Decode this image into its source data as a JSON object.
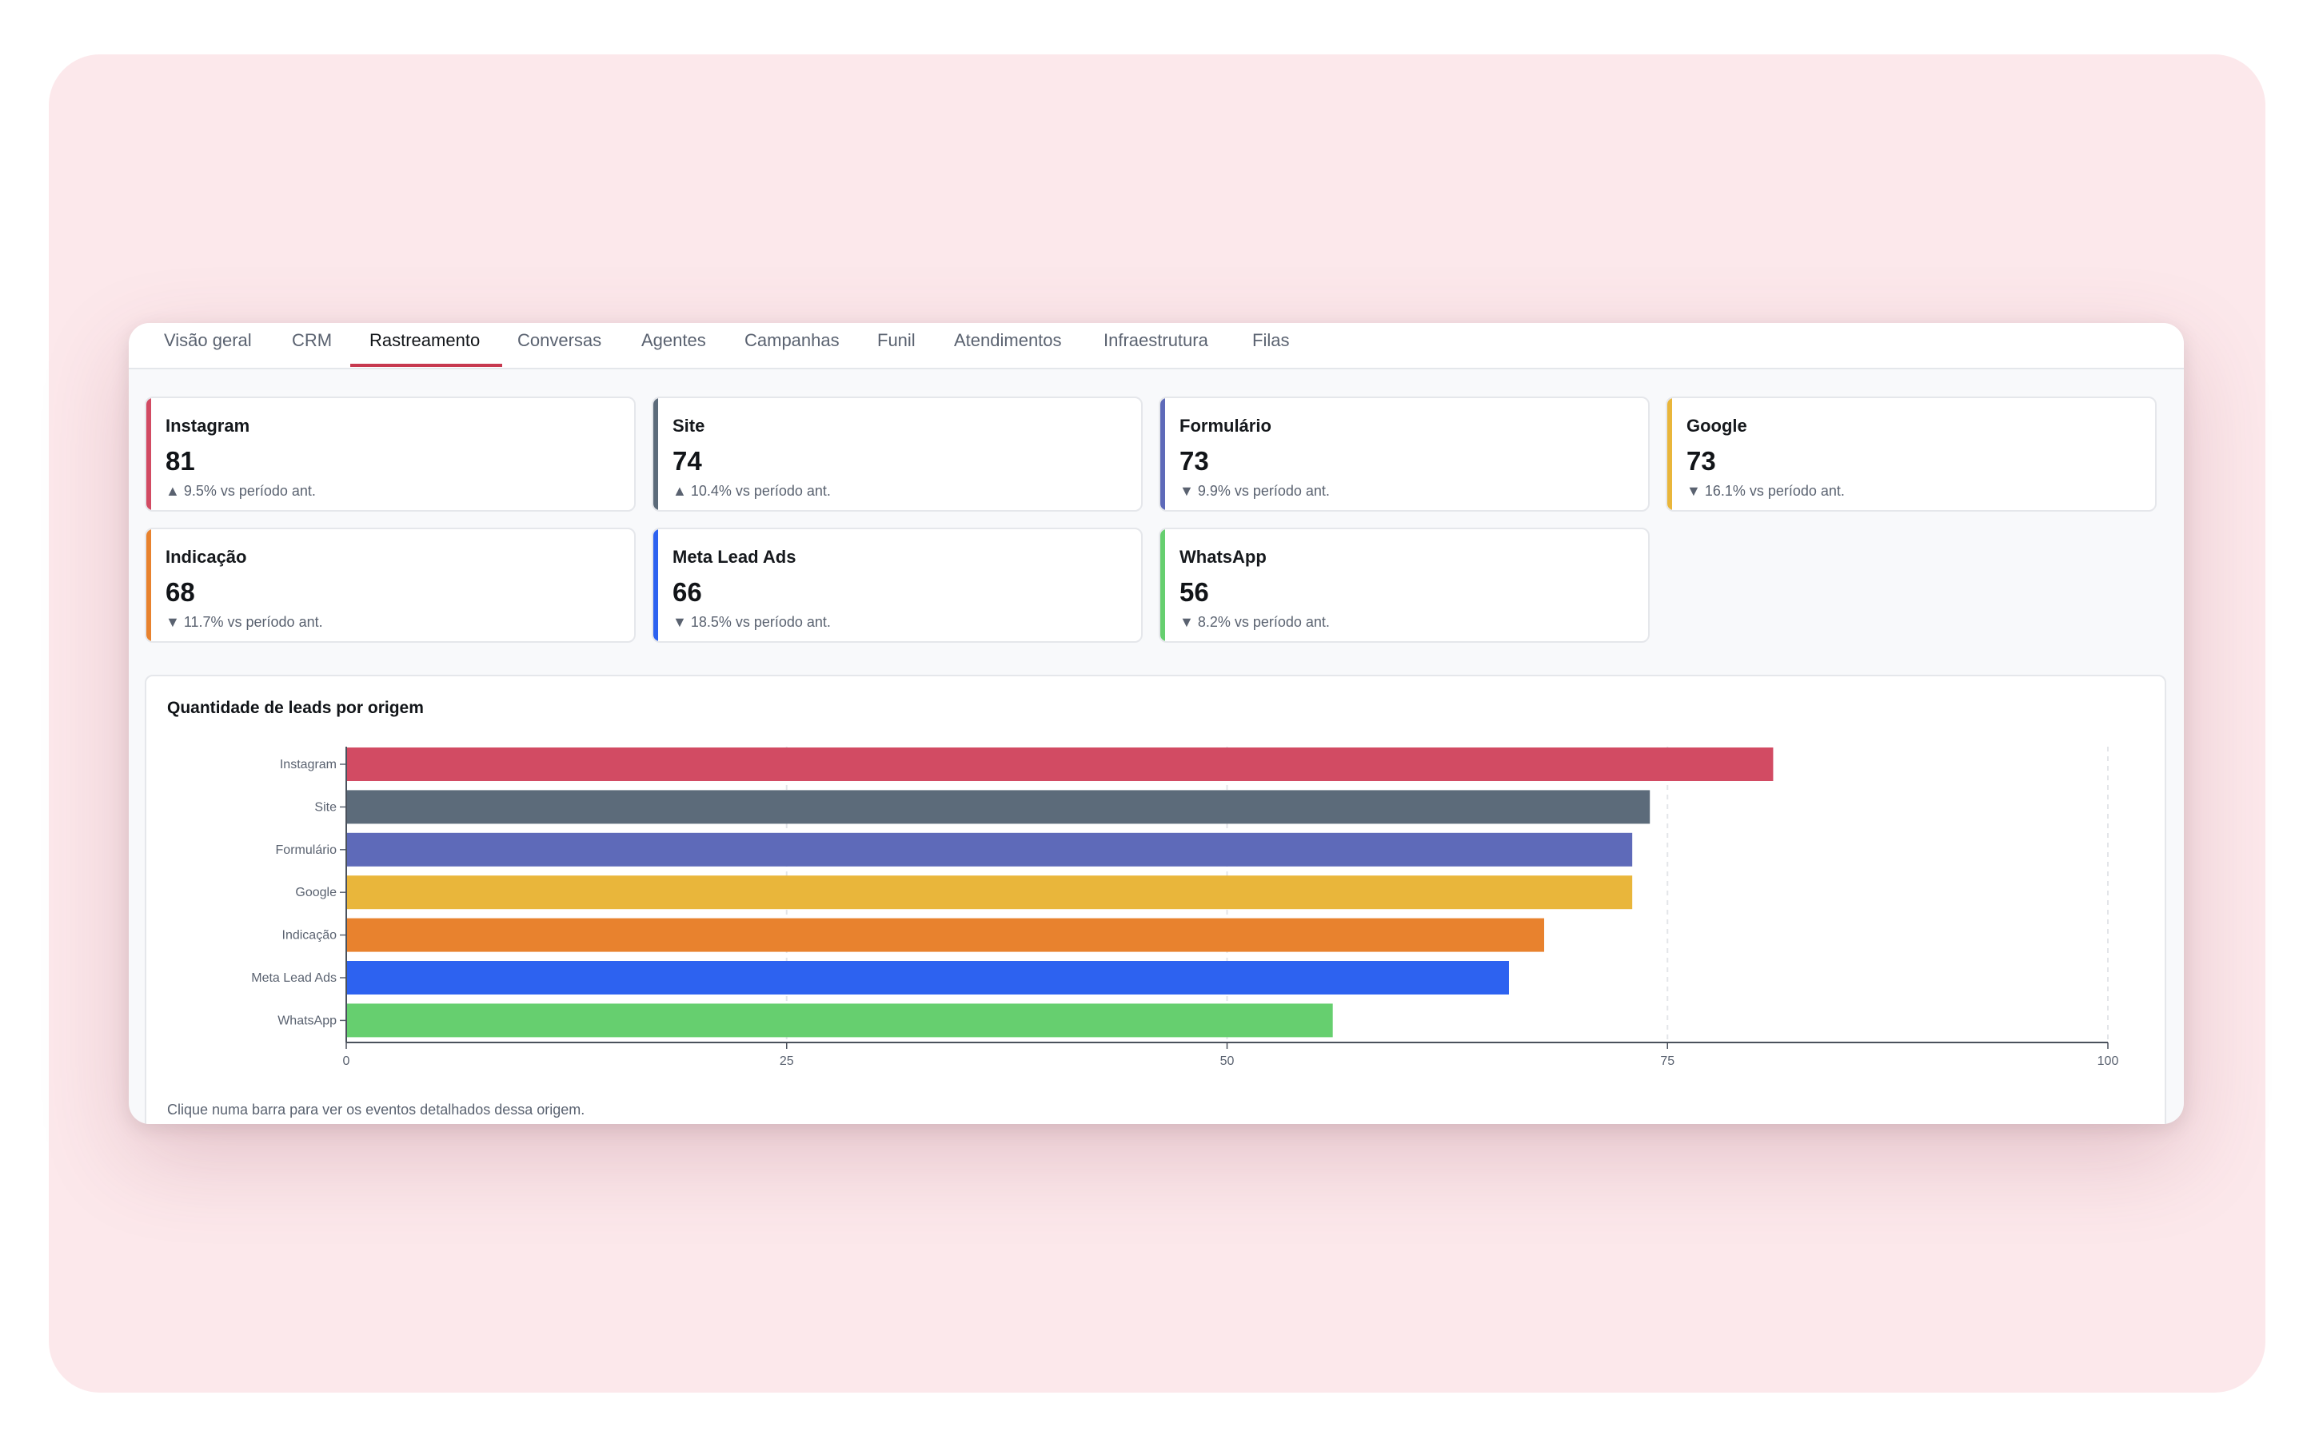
{
  "tabs": [
    {
      "label": "Visão geral",
      "active": false
    },
    {
      "label": "CRM",
      "active": false
    },
    {
      "label": "Rastreamento",
      "active": true
    },
    {
      "label": "Conversas",
      "active": false
    },
    {
      "label": "Agentes",
      "active": false
    },
    {
      "label": "Campanhas",
      "active": false
    },
    {
      "label": "Funil",
      "active": false
    },
    {
      "label": "Atendimentos",
      "active": false
    },
    {
      "label": "Infraestrutura",
      "active": false
    },
    {
      "label": "Filas",
      "active": false
    }
  ],
  "cards": [
    {
      "name": "Instagram",
      "value": "81",
      "delta": "▲ 9.5% vs período ant.",
      "color": "#d24b63"
    },
    {
      "name": "Site",
      "value": "74",
      "delta": "▲ 10.4% vs período ant.",
      "color": "#5c6b7a"
    },
    {
      "name": "Formulário",
      "value": "73",
      "delta": "▼ 9.9% vs período ant.",
      "color": "#5e6ab9"
    },
    {
      "name": "Google",
      "value": "73",
      "delta": "▼ 16.1% vs período ant.",
      "color": "#e9b63b"
    },
    {
      "name": "Indicação",
      "value": "68",
      "delta": "▼ 11.7% vs período ant.",
      "color": "#e8822e"
    },
    {
      "name": "Meta Lead Ads",
      "value": "66",
      "delta": "▼ 18.5% vs período ant.",
      "color": "#2d62f0"
    },
    {
      "name": "WhatsApp",
      "value": "56",
      "delta": "▼ 8.2% vs período ant.",
      "color": "#66cf6f"
    }
  ],
  "chart": {
    "title": "Quantidade de leads por origem",
    "hint": "Clique numa barra para ver os eventos detalhados dessa origem."
  },
  "chart_data": {
    "type": "bar",
    "orientation": "horizontal",
    "title": "Quantidade de leads por origem",
    "categories": [
      "Instagram",
      "Site",
      "Formulário",
      "Google",
      "Indicação",
      "Meta Lead Ads",
      "WhatsApp"
    ],
    "values": [
      81,
      74,
      73,
      73,
      68,
      66,
      56
    ],
    "colors": [
      "#d24b63",
      "#5c6b7a",
      "#5e6ab9",
      "#e9b63b",
      "#e8822e",
      "#2d62f0",
      "#66cf6f"
    ],
    "xlim": [
      0,
      100
    ],
    "xticks": [
      0,
      25,
      50,
      75,
      100
    ],
    "grid": "vertical-dashed",
    "legend": "none"
  }
}
